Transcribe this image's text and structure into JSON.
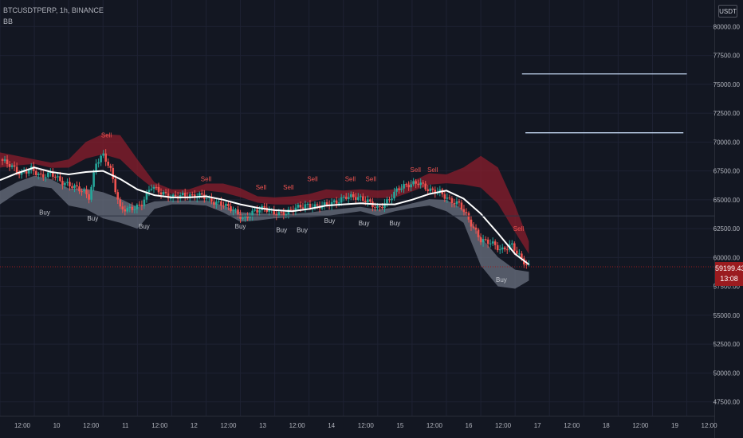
{
  "header": {
    "symbol_title": "BTCUSDTPERP, 1h, BINANCE",
    "indicator_label": "BB"
  },
  "price_axis": {
    "currency": "USDT",
    "last_price": "59199.43",
    "countdown": "13:08"
  },
  "colors": {
    "background": "#131722",
    "grid": "#1e2233",
    "axis_text": "#b2b5be",
    "candle_up": "#26a69a",
    "candle_down": "#ef5350",
    "upper_band": "#8b1e2c",
    "lower_band": "#6b7280",
    "basis_line": "#ffffff",
    "signal_sell": "#ef5350",
    "signal_buy": "#c3c6ce",
    "last_price_line": "#9b1b1f",
    "horizontal_lines": "#cfe3ff"
  },
  "chart_data": {
    "type": "candlestick",
    "symbol": "BTCUSDTPERP",
    "interval": "1h",
    "exchange": "BINANCE",
    "indicator": "BB",
    "y_ticks": [
      47500,
      50000,
      52500,
      55000,
      57500,
      60000,
      62500,
      65000,
      67500,
      70000,
      72500,
      75000,
      77500,
      80000
    ],
    "ylim": [
      46300,
      82300
    ],
    "x_ticks": [
      "12:00",
      "10",
      "12:00",
      "11",
      "12:00",
      "12",
      "12:00",
      "13",
      "12:00",
      "14",
      "12:00",
      "15",
      "12:00",
      "16",
      "12:00",
      "17",
      "12:00",
      "18",
      "12:00",
      "19",
      "12:00"
    ],
    "x_range": [
      0,
      20.8
    ],
    "grid": true,
    "last_price": 59199.43,
    "basis": [
      [
        0,
        66700
      ],
      [
        0.5,
        67300
      ],
      [
        1,
        67800
      ],
      [
        1.5,
        67400
      ],
      [
        2,
        67200
      ],
      [
        2.5,
        67400
      ],
      [
        3,
        67500
      ],
      [
        3.5,
        66800
      ],
      [
        4,
        65900
      ],
      [
        4.5,
        65400
      ],
      [
        5,
        65200
      ],
      [
        5.5,
        65200
      ],
      [
        6,
        65300
      ],
      [
        6.5,
        65000
      ],
      [
        7,
        64600
      ],
      [
        7.5,
        64300
      ],
      [
        8,
        64100
      ],
      [
        8.5,
        64000
      ],
      [
        9,
        64200
      ],
      [
        9.5,
        64500
      ],
      [
        10,
        64600
      ],
      [
        10.5,
        64700
      ],
      [
        11,
        64600
      ],
      [
        11.5,
        64600
      ],
      [
        12,
        65000
      ],
      [
        12.5,
        65500
      ],
      [
        13,
        65800
      ],
      [
        13.5,
        65100
      ],
      [
        14,
        63800
      ],
      [
        14.5,
        62100
      ],
      [
        15,
        60300
      ],
      [
        15.4,
        59400
      ]
    ],
    "upper_band": [
      [
        0,
        69100
      ],
      [
        0.5,
        68800
      ],
      [
        1,
        68500
      ],
      [
        1.5,
        68200
      ],
      [
        2,
        68500
      ],
      [
        2.5,
        70000
      ],
      [
        3,
        70700
      ],
      [
        3.5,
        70600
      ],
      [
        4,
        68500
      ],
      [
        4.5,
        66500
      ],
      [
        5,
        65900
      ],
      [
        5.5,
        65900
      ],
      [
        6,
        66400
      ],
      [
        6.5,
        66400
      ],
      [
        7,
        66000
      ],
      [
        7.5,
        65300
      ],
      [
        8,
        65200
      ],
      [
        8.5,
        65300
      ],
      [
        9,
        65500
      ],
      [
        9.5,
        65900
      ],
      [
        10,
        65800
      ],
      [
        10.5,
        65900
      ],
      [
        11,
        65800
      ],
      [
        11.5,
        65900
      ],
      [
        12,
        66600
      ],
      [
        12.5,
        67300
      ],
      [
        13,
        67200
      ],
      [
        13.5,
        67800
      ],
      [
        14,
        68800
      ],
      [
        14.5,
        67800
      ],
      [
        15,
        64500
      ],
      [
        15.4,
        61400
      ]
    ],
    "lower_band": [
      [
        0,
        64600
      ],
      [
        0.5,
        65600
      ],
      [
        1,
        66200
      ],
      [
        1.5,
        66000
      ],
      [
        2,
        64500
      ],
      [
        2.5,
        64200
      ],
      [
        3,
        63400
      ],
      [
        3.5,
        63000
      ],
      [
        4,
        62500
      ],
      [
        4.5,
        64200
      ],
      [
        5,
        64600
      ],
      [
        5.5,
        64600
      ],
      [
        6,
        64500
      ],
      [
        6.5,
        63900
      ],
      [
        7,
        63100
      ],
      [
        7.5,
        63200
      ],
      [
        8,
        63400
      ],
      [
        8.5,
        63500
      ],
      [
        9,
        63500
      ],
      [
        9.5,
        63600
      ],
      [
        10,
        63800
      ],
      [
        10.5,
        64000
      ],
      [
        11,
        63600
      ],
      [
        11.5,
        64000
      ],
      [
        12,
        64300
      ],
      [
        12.5,
        64500
      ],
      [
        13,
        64000
      ],
      [
        13.5,
        63000
      ],
      [
        14,
        59300
      ],
      [
        14.5,
        57500
      ],
      [
        15,
        57300
      ],
      [
        15.4,
        58000
      ]
    ],
    "close_path": [
      [
        0,
        68500
      ],
      [
        0.3,
        68000
      ],
      [
        0.6,
        67200
      ],
      [
        0.9,
        67700
      ],
      [
        1.2,
        67000
      ],
      [
        1.5,
        67300
      ],
      [
        1.8,
        66500
      ],
      [
        2.1,
        66200
      ],
      [
        2.4,
        65800
      ],
      [
        2.6,
        65200
      ],
      [
        2.8,
        68200
      ],
      [
        3.0,
        68900
      ],
      [
        3.2,
        67800
      ],
      [
        3.5,
        64200
      ],
      [
        3.8,
        64200
      ],
      [
        4.1,
        64500
      ],
      [
        4.4,
        66200
      ],
      [
        4.7,
        65600
      ],
      [
        5.0,
        65200
      ],
      [
        5.3,
        65400
      ],
      [
        5.6,
        65300
      ],
      [
        5.9,
        65400
      ],
      [
        6.2,
        64800
      ],
      [
        6.5,
        64600
      ],
      [
        6.8,
        64100
      ],
      [
        7.1,
        63300
      ],
      [
        7.4,
        64000
      ],
      [
        7.7,
        64300
      ],
      [
        8.0,
        63800
      ],
      [
        8.3,
        63800
      ],
      [
        8.6,
        64300
      ],
      [
        8.9,
        64500
      ],
      [
        9.2,
        64400
      ],
      [
        9.5,
        64600
      ],
      [
        9.8,
        64800
      ],
      [
        10.1,
        65300
      ],
      [
        10.4,
        65200
      ],
      [
        10.7,
        64900
      ],
      [
        11.0,
        64200
      ],
      [
        11.3,
        64900
      ],
      [
        11.6,
        66000
      ],
      [
        11.9,
        66300
      ],
      [
        12.2,
        66500
      ],
      [
        12.5,
        65800
      ],
      [
        12.8,
        65700
      ],
      [
        13.1,
        64900
      ],
      [
        13.4,
        64600
      ],
      [
        13.7,
        63000
      ],
      [
        14.0,
        61500
      ],
      [
        14.3,
        61300
      ],
      [
        14.6,
        60600
      ],
      [
        14.9,
        61100
      ],
      [
        15.2,
        59800
      ],
      [
        15.4,
        59199.43
      ]
    ],
    "signals": [
      {
        "label": "Sell",
        "x": 3.1,
        "price": 70400
      },
      {
        "label": "Buy",
        "x": 1.3,
        "price": 63700
      },
      {
        "label": "Buy",
        "x": 2.7,
        "price": 63200
      },
      {
        "label": "Buy",
        "x": 4.2,
        "price": 62500
      },
      {
        "label": "Sell",
        "x": 6.0,
        "price": 66600
      },
      {
        "label": "Sell",
        "x": 7.6,
        "price": 65900
      },
      {
        "label": "Buy",
        "x": 7.0,
        "price": 62500
      },
      {
        "label": "Sell",
        "x": 8.4,
        "price": 65900
      },
      {
        "label": "Buy",
        "x": 8.2,
        "price": 62200
      },
      {
        "label": "Buy",
        "x": 8.8,
        "price": 62200
      },
      {
        "label": "Sell",
        "x": 9.1,
        "price": 66600
      },
      {
        "label": "Buy",
        "x": 9.6,
        "price": 63000
      },
      {
        "label": "Sell",
        "x": 10.2,
        "price": 66600
      },
      {
        "label": "Sell",
        "x": 10.8,
        "price": 66600
      },
      {
        "label": "Buy",
        "x": 10.6,
        "price": 62800
      },
      {
        "label": "Buy",
        "x": 11.5,
        "price": 62800
      },
      {
        "label": "Sell",
        "x": 12.1,
        "price": 67400
      },
      {
        "label": "Sell",
        "x": 12.6,
        "price": 67400
      },
      {
        "label": "Sell",
        "x": 15.1,
        "price": 62300
      },
      {
        "label": "Buy",
        "x": 14.6,
        "price": 57900
      }
    ],
    "horizontal_lines": [
      {
        "price": 75900,
        "x_start": 15.2,
        "x_end": 20.0
      },
      {
        "price": 70800,
        "x_start": 15.3,
        "x_end": 19.9
      }
    ]
  }
}
